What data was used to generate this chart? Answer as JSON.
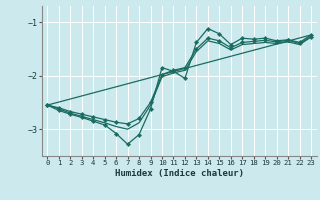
{
  "xlabel": "Humidex (Indice chaleur)",
  "xlim": [
    -0.5,
    23.5
  ],
  "ylim": [
    -3.5,
    -0.7
  ],
  "yticks": [
    -3,
    -2,
    -1
  ],
  "xticks": [
    0,
    1,
    2,
    3,
    4,
    5,
    6,
    7,
    8,
    9,
    10,
    11,
    12,
    13,
    14,
    15,
    16,
    17,
    18,
    19,
    20,
    21,
    22,
    23
  ],
  "bg_color": "#cce9ed",
  "line_color": "#1a6b60",
  "grid_color": "#ffffff",
  "lines": [
    {
      "x": [
        0,
        1,
        2,
        3,
        4,
        5,
        6,
        7,
        8,
        9,
        10,
        11,
        12,
        13,
        14,
        15,
        16,
        17,
        18,
        19,
        20,
        21,
        22,
        23
      ],
      "y": [
        -2.55,
        -2.65,
        -2.72,
        -2.78,
        -2.85,
        -2.92,
        -3.08,
        -3.28,
        -3.1,
        -2.62,
        -1.85,
        -1.92,
        -2.05,
        -1.38,
        -1.12,
        -1.22,
        -1.42,
        -1.3,
        -1.32,
        -1.3,
        -1.35,
        -1.33,
        -1.38,
        -1.24
      ],
      "markers": true
    },
    {
      "x": [
        0,
        1,
        2,
        3,
        4,
        5,
        6,
        7,
        8,
        9,
        10,
        11,
        12,
        13,
        14,
        15,
        16,
        17,
        18,
        19,
        20,
        21,
        22,
        23
      ],
      "y": [
        -2.55,
        -2.6,
        -2.67,
        -2.72,
        -2.77,
        -2.82,
        -2.87,
        -2.9,
        -2.8,
        -2.5,
        -1.98,
        -1.9,
        -1.85,
        -1.5,
        -1.3,
        -1.35,
        -1.48,
        -1.38,
        -1.36,
        -1.34,
        -1.37,
        -1.34,
        -1.4,
        -1.27
      ],
      "markers": true
    },
    {
      "x": [
        0,
        23
      ],
      "y": [
        -2.55,
        -1.24
      ],
      "markers": false
    },
    {
      "x": [
        0,
        1,
        2,
        3,
        4,
        5,
        6,
        7,
        8,
        9,
        10,
        11,
        12,
        13,
        14,
        15,
        16,
        17,
        18,
        19,
        20,
        21,
        22,
        23
      ],
      "y": [
        -2.55,
        -2.62,
        -2.7,
        -2.76,
        -2.82,
        -2.88,
        -2.95,
        -3.0,
        -2.88,
        -2.55,
        -2.02,
        -1.95,
        -1.9,
        -1.55,
        -1.35,
        -1.4,
        -1.52,
        -1.42,
        -1.4,
        -1.38,
        -1.4,
        -1.37,
        -1.42,
        -1.28
      ],
      "markers": false
    }
  ]
}
